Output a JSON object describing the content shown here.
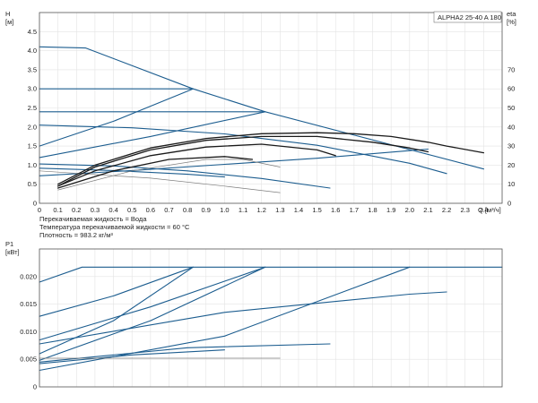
{
  "notes": [
    "Перекачиваемая жидкость = Вода",
    "Температура перекачиваемой жидкости = 60 °C",
    "Плотность = 983.2 кг/м³"
  ],
  "colors": {
    "blue": "#1c5d8f",
    "black": "#1a1a1a",
    "gray": "#7d7d7d",
    "grid": "#e3e3e3"
  },
  "chart_data": [
    {
      "type": "line",
      "title": "ALPHA2 25-40 A 180",
      "ylabel_left": "H",
      "ylabel_left_unit": "[м]",
      "ylabel_right": "eta",
      "ylabel_right_unit": "[%]",
      "xlabel": "Q [м³/ч]",
      "xlim": [
        0,
        2.5
      ],
      "ylim": [
        0,
        5
      ],
      "eta_ylim": [
        0,
        100
      ],
      "xticks": [
        "0",
        "0.1",
        "0.2",
        "0.3",
        "0.4",
        "0.5",
        "0.6",
        "0.7",
        "0.8",
        "0.9",
        "1.0",
        "1.1",
        "1.2",
        "1.3",
        "1.4",
        "1.5",
        "1.6",
        "1.7",
        "1.8",
        "1.9",
        "2.0",
        "2.1",
        "2.2",
        "2.3",
        "2.4"
      ],
      "yticks": [
        "0",
        "0.5",
        "1.0",
        "1.5",
        "2.0",
        "2.5",
        "3.0",
        "3.5",
        "4.0",
        "4.5"
      ],
      "eta_ticks": [
        "0",
        "10",
        "20",
        "30",
        "40",
        "50",
        "60",
        "70"
      ],
      "grid": true,
      "series": [
        {
          "kind": "pump-curve",
          "color": "blue",
          "x": [
            0,
            0.25,
            0.83,
            1.22,
            2.4
          ],
          "y": [
            4.1,
            4.07,
            3.0,
            2.4,
            0.9
          ]
        },
        {
          "kind": "pump-curve",
          "color": "blue",
          "x": [
            0,
            0.83
          ],
          "y": [
            3.0,
            3.0
          ]
        },
        {
          "kind": "pump-curve",
          "color": "blue",
          "x": [
            0,
            1.22
          ],
          "y": [
            2.4,
            2.4
          ]
        },
        {
          "kind": "pump-curve",
          "color": "blue",
          "x": [
            0,
            0.4,
            0.83
          ],
          "y": [
            1.5,
            2.15,
            3.0
          ]
        },
        {
          "kind": "pump-curve",
          "color": "blue",
          "x": [
            0,
            0.6,
            1.22
          ],
          "y": [
            1.2,
            1.75,
            2.4
          ]
        },
        {
          "kind": "pump-curve",
          "color": "blue",
          "x": [
            0,
            0.5,
            1.0,
            1.5,
            2.0,
            2.2
          ],
          "y": [
            2.05,
            1.98,
            1.82,
            1.52,
            1.05,
            0.78
          ]
        },
        {
          "kind": "pump-curve",
          "color": "blue",
          "x": [
            0,
            0.5,
            1.0,
            1.5,
            2.0,
            2.1
          ],
          "y": [
            0.72,
            0.86,
            1.02,
            1.18,
            1.38,
            1.42
          ]
        },
        {
          "kind": "pump-curve",
          "color": "blue",
          "x": [
            0,
            0.4,
            0.8,
            1.2,
            1.57
          ],
          "y": [
            1.03,
            0.98,
            0.85,
            0.65,
            0.4
          ]
        },
        {
          "kind": "pump-curve",
          "color": "blue",
          "x": [
            0,
            0.4,
            0.8,
            1.0
          ],
          "y": [
            0.92,
            0.86,
            0.76,
            0.69
          ]
        },
        {
          "kind": "pump-curve",
          "color": "gray",
          "x": [
            0,
            0.6,
            1.0,
            1.3
          ],
          "y": [
            0.85,
            0.66,
            0.45,
            0.28
          ]
        },
        {
          "kind": "efficiency",
          "color": "black",
          "x": [
            0.1,
            0.3,
            0.6,
            0.9,
            1.2,
            1.5,
            1.7,
            1.9,
            2.1,
            2.2,
            2.4
          ],
          "y": [
            10,
            20,
            29,
            34,
            36.5,
            37,
            36.5,
            35,
            32,
            30,
            26.5
          ]
        },
        {
          "kind": "efficiency",
          "color": "black",
          "x": [
            0.1,
            0.3,
            0.6,
            0.9,
            1.2,
            1.5,
            1.8,
            2.0,
            2.1
          ],
          "y": [
            9,
            19,
            28,
            33,
            35,
            35,
            32,
            29,
            27
          ]
        },
        {
          "kind": "efficiency",
          "color": "black",
          "x": [
            0.1,
            0.3,
            0.6,
            0.9,
            1.2,
            1.5,
            1.6
          ],
          "y": [
            9,
            17,
            25,
            29.5,
            31,
            28,
            25
          ]
        },
        {
          "kind": "efficiency",
          "color": "black",
          "x": [
            0.1,
            0.4,
            0.7,
            1.0,
            1.15
          ],
          "y": [
            8,
            17,
            23,
            24.5,
            23
          ]
        },
        {
          "kind": "efficiency",
          "color": "gray",
          "x": [
            0.1,
            0.5,
            0.9,
            1.1,
            1.3
          ],
          "y": [
            7,
            17,
            23,
            23,
            19
          ]
        }
      ]
    },
    {
      "type": "line",
      "ylabel": "P1",
      "ylabel_unit": "[кВт]",
      "xlim": [
        0,
        2.5
      ],
      "ylim": [
        0,
        0.025
      ],
      "yticks": [
        "0",
        "0.005",
        "0.010",
        "0.015",
        "0.020"
      ],
      "grid": true,
      "series": [
        {
          "color": "blue",
          "x": [
            0,
            0.23,
            2.5
          ],
          "y": [
            0.019,
            0.0217,
            0.0217
          ]
        },
        {
          "color": "blue",
          "x": [
            0,
            0.4,
            0.83
          ],
          "y": [
            0.0128,
            0.0165,
            0.0217
          ]
        },
        {
          "color": "blue",
          "x": [
            0,
            0.6,
            1.22
          ],
          "y": [
            0.0085,
            0.0145,
            0.0217
          ]
        },
        {
          "color": "blue",
          "x": [
            0,
            0.4,
            0.83
          ],
          "y": [
            0.006,
            0.012,
            0.0217
          ]
        },
        {
          "color": "blue",
          "x": [
            0,
            0.6,
            1.22
          ],
          "y": [
            0.0048,
            0.012,
            0.0217
          ]
        },
        {
          "color": "blue",
          "x": [
            0,
            1.0,
            2.0
          ],
          "y": [
            0.003,
            0.0092,
            0.0217
          ]
        },
        {
          "color": "blue",
          "x": [
            0,
            1.0,
            2.0,
            2.2
          ],
          "y": [
            0.0078,
            0.0135,
            0.0168,
            0.0172
          ]
        },
        {
          "color": "blue",
          "x": [
            0,
            0.8,
            1.57
          ],
          "y": [
            0.0045,
            0.0071,
            0.0078
          ]
        },
        {
          "color": "blue",
          "x": [
            0,
            0.5,
            1.0
          ],
          "y": [
            0.0042,
            0.0058,
            0.0067
          ]
        },
        {
          "color": "gray",
          "x": [
            0,
            1.3
          ],
          "y": [
            0.0052,
            0.0052
          ]
        }
      ]
    }
  ]
}
